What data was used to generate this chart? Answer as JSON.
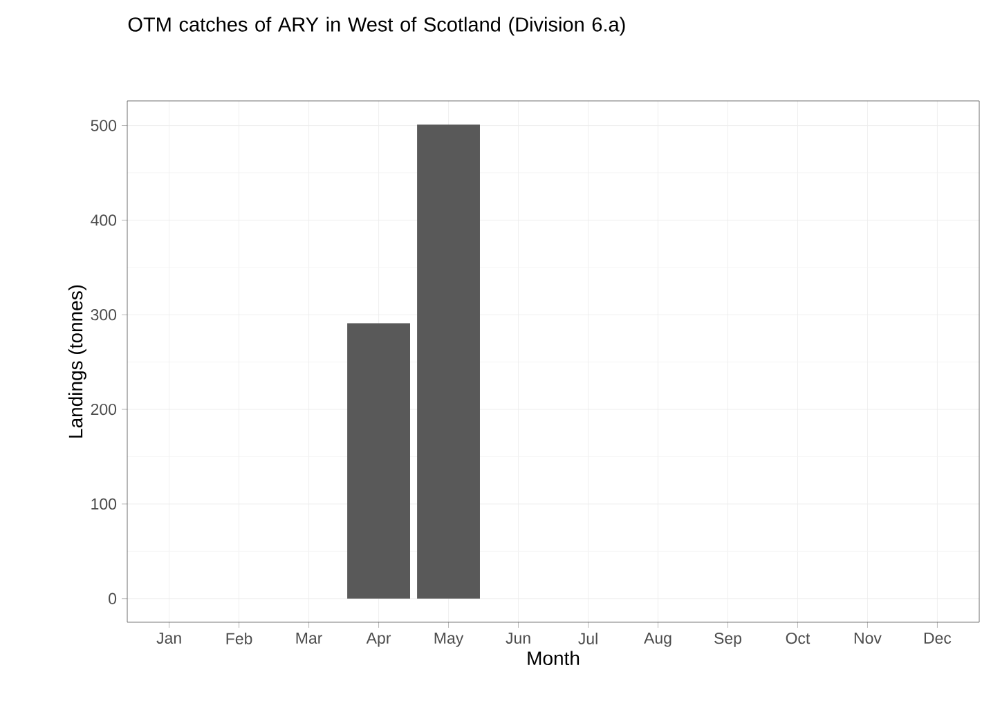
{
  "chart_data": {
    "type": "bar",
    "title": "OTM catches of ARY in West of Scotland (Division 6.a)",
    "xlabel": "Month",
    "ylabel": "Landings (tonnes)",
    "categories": [
      "Jan",
      "Feb",
      "Mar",
      "Apr",
      "May",
      "Jun",
      "Jul",
      "Aug",
      "Sep",
      "Oct",
      "Nov",
      "Dec"
    ],
    "values": [
      null,
      null,
      null,
      291,
      501,
      null,
      null,
      null,
      null,
      null,
      null,
      null
    ],
    "color": "#595959",
    "ylim": [
      -25,
      526
    ],
    "yticks": [
      0,
      100,
      200,
      300,
      400,
      500
    ],
    "grid": true
  }
}
